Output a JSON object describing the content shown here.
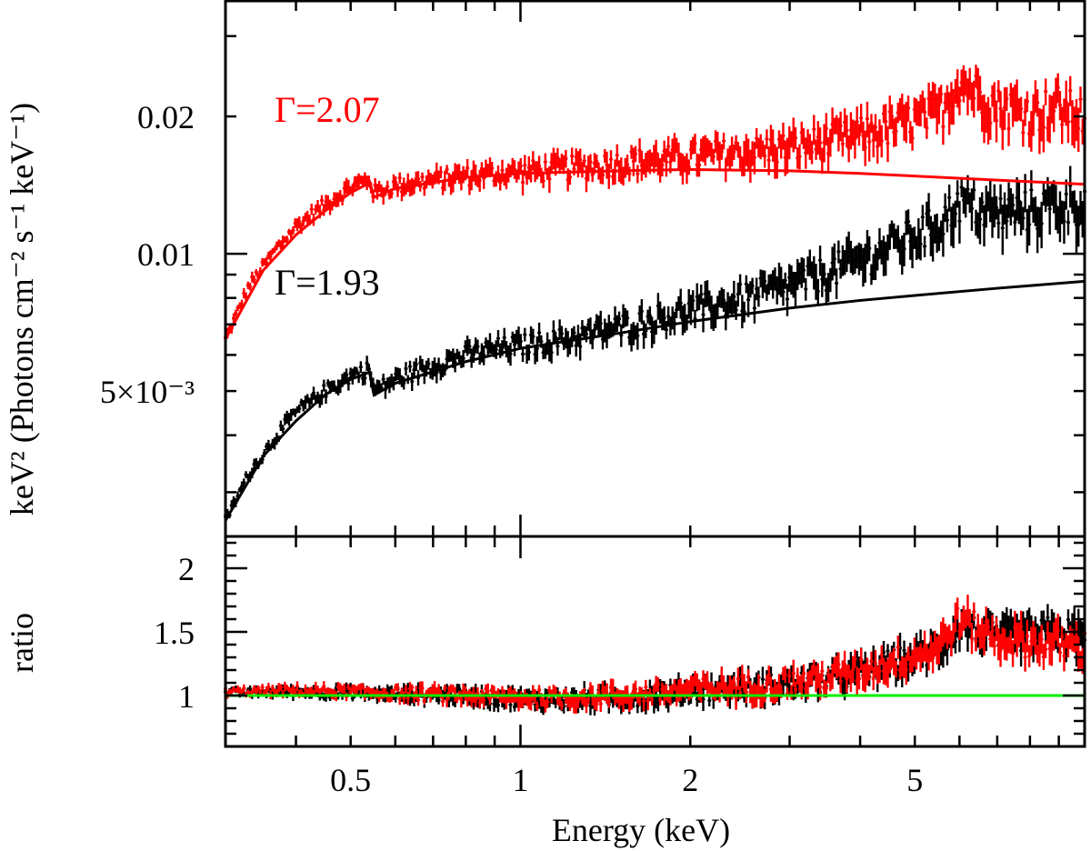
{
  "chart_data": [
    {
      "panel": "top",
      "type": "line",
      "title": "",
      "xlabel": "Energy (keV)",
      "ylabel": "keV² (Photons cm⁻² s⁻¹ keV⁻¹)",
      "xscale": "log",
      "yscale": "log",
      "xlim": [
        0.3,
        10
      ],
      "ylim": [
        0.0024,
        0.036
      ],
      "ytick_labels": [
        {
          "value": 0.005,
          "label": "5×10⁻³"
        },
        {
          "value": 0.01,
          "label": "0.01"
        },
        {
          "value": 0.02,
          "label": "0.02"
        }
      ],
      "annotations": [
        {
          "text": "Γ=2.07",
          "color": "#ff0000"
        },
        {
          "text": "Γ=1.93",
          "color": "#000000"
        }
      ],
      "series": [
        {
          "name": "data-red",
          "color": "#ff0000",
          "style": "errorbars",
          "x": [
            0.3,
            0.33,
            0.37,
            0.4,
            0.45,
            0.5,
            0.54,
            0.55,
            0.6,
            0.7,
            0.8,
            0.9,
            1.0,
            1.2,
            1.5,
            1.8,
            2.0,
            2.5,
            3.0,
            3.5,
            4.0,
            4.5,
            5.0,
            5.5,
            6.0,
            6.5,
            7.0,
            8.0,
            9.0,
            10.0
          ],
          "y": [
            0.0065,
            0.0085,
            0.0103,
            0.0115,
            0.0128,
            0.014,
            0.0146,
            0.0136,
            0.0141,
            0.0145,
            0.0148,
            0.015,
            0.0151,
            0.0154,
            0.0158,
            0.0161,
            0.0163,
            0.0167,
            0.0171,
            0.0176,
            0.0182,
            0.0189,
            0.0196,
            0.0203,
            0.024,
            0.0225,
            0.021,
            0.0205,
            0.021,
            0.02
          ]
        },
        {
          "name": "model-red",
          "color": "#ff0000",
          "style": "line",
          "x": [
            0.3,
            0.35,
            0.4,
            0.45,
            0.5,
            0.54,
            0.55,
            0.6,
            0.8,
            1.0,
            1.5,
            2.0,
            3.0,
            4.0,
            5.0,
            7.0,
            10.0
          ],
          "y": [
            0.0065,
            0.0092,
            0.011,
            0.0124,
            0.0136,
            0.0143,
            0.0133,
            0.0139,
            0.0147,
            0.015,
            0.0152,
            0.0153,
            0.0152,
            0.015,
            0.0148,
            0.0145,
            0.0142
          ]
        },
        {
          "name": "data-black",
          "color": "#000000",
          "style": "errorbars",
          "x": [
            0.3,
            0.33,
            0.37,
            0.4,
            0.45,
            0.5,
            0.54,
            0.55,
            0.6,
            0.7,
            0.8,
            0.9,
            1.0,
            1.2,
            1.5,
            1.8,
            2.0,
            2.5,
            3.0,
            3.5,
            4.0,
            4.5,
            5.0,
            5.5,
            6.0,
            6.5,
            7.0,
            8.0,
            9.0,
            10.0
          ],
          "y": [
            0.0026,
            0.0033,
            0.004,
            0.0045,
            0.005,
            0.0054,
            0.0056,
            0.005,
            0.0053,
            0.0057,
            0.006,
            0.0062,
            0.0063,
            0.0065,
            0.0069,
            0.0073,
            0.0075,
            0.008,
            0.0085,
            0.0091,
            0.0097,
            0.0103,
            0.011,
            0.0116,
            0.013,
            0.0125,
            0.0122,
            0.0125,
            0.0128,
            0.013
          ]
        },
        {
          "name": "model-black",
          "color": "#000000",
          "style": "line",
          "x": [
            0.3,
            0.35,
            0.4,
            0.45,
            0.5,
            0.54,
            0.55,
            0.6,
            0.8,
            1.0,
            1.5,
            2.0,
            3.0,
            4.0,
            5.0,
            7.0,
            10.0
          ],
          "y": [
            0.0026,
            0.0036,
            0.0043,
            0.0049,
            0.0053,
            0.0055,
            0.0049,
            0.0052,
            0.0058,
            0.0062,
            0.0067,
            0.0071,
            0.0076,
            0.0079,
            0.0081,
            0.0084,
            0.0087
          ]
        }
      ]
    },
    {
      "panel": "bottom",
      "type": "line",
      "title": "",
      "xlabel": "Energy (keV)",
      "ylabel": "ratio",
      "xscale": "log",
      "yscale": "linear",
      "xlim": [
        0.3,
        10
      ],
      "ylim": [
        0.6,
        2.25
      ],
      "ytick_labels": [
        {
          "value": 1,
          "label": "1"
        },
        {
          "value": 1.5,
          "label": "1.5"
        },
        {
          "value": 2,
          "label": "2"
        }
      ],
      "xtick_labels": [
        {
          "value": 0.5,
          "label": "0.5"
        },
        {
          "value": 1,
          "label": "1"
        },
        {
          "value": 2,
          "label": "2"
        },
        {
          "value": 5,
          "label": "5"
        }
      ],
      "series": [
        {
          "name": "ratio-black",
          "color": "#000000",
          "style": "errorbars",
          "x": [
            0.3,
            0.4,
            0.5,
            0.6,
            0.8,
            1.0,
            1.2,
            1.5,
            1.8,
            2.0,
            2.5,
            3.0,
            3.5,
            4.0,
            4.5,
            5.0,
            5.5,
            6.0,
            6.5,
            7.0,
            8.0,
            9.0,
            10.0
          ],
          "y": [
            1.02,
            1.03,
            1.02,
            1.01,
            1.0,
            0.97,
            0.97,
            0.98,
            1.0,
            1.04,
            1.06,
            1.09,
            1.12,
            1.18,
            1.25,
            1.3,
            1.36,
            1.55,
            1.5,
            1.45,
            1.48,
            1.5,
            1.45
          ]
        },
        {
          "name": "ratio-red",
          "color": "#ff0000",
          "style": "errorbars",
          "x": [
            0.3,
            0.4,
            0.5,
            0.6,
            0.8,
            1.0,
            1.2,
            1.5,
            1.8,
            2.0,
            2.5,
            3.0,
            3.5,
            4.0,
            4.5,
            5.0,
            5.5,
            6.0,
            6.5,
            7.0,
            8.0,
            9.0,
            10.0
          ],
          "y": [
            1.03,
            1.04,
            1.03,
            1.02,
            1.0,
            0.98,
            0.98,
            1.0,
            1.02,
            1.05,
            1.07,
            1.1,
            1.14,
            1.2,
            1.26,
            1.32,
            1.38,
            1.6,
            1.52,
            1.45,
            1.42,
            1.4,
            1.38
          ]
        },
        {
          "name": "unity-line",
          "color": "#00ee00",
          "style": "line",
          "x": [
            0.3,
            10.0
          ],
          "y": [
            1.0,
            1.0
          ]
        }
      ]
    }
  ]
}
